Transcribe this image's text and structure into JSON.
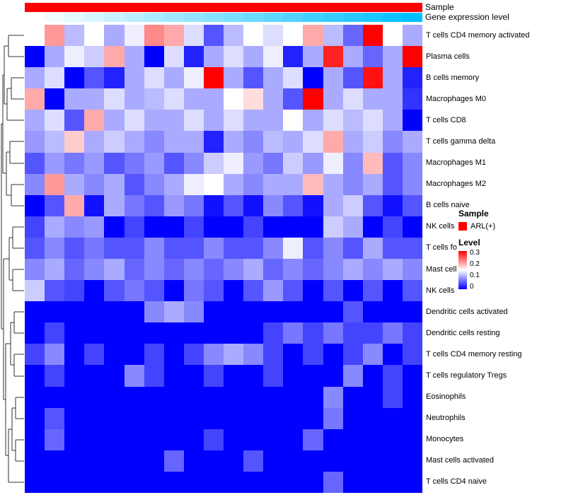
{
  "figure": {
    "annotation_labels": {
      "sample": "Sample",
      "gene_expression": "Gene expression level"
    },
    "legend": {
      "sample_title": "Sample",
      "sample_entry": "ARL(+)",
      "sample_color": "#FF0000",
      "level_title": "Level",
      "level_ticks": [
        "0.3",
        "0.2",
        "0.1",
        "0"
      ]
    }
  },
  "chart_data": {
    "type": "heatmap",
    "title": "",
    "rows": [
      "T cells CD4 memory activated",
      "Plasma cells",
      "B cells memory",
      "Macrophages M0",
      "T cells CD8",
      "T cells gamma delta",
      "Macrophages M1",
      "Macrophages M2",
      "B cells naive",
      "NK cells resting",
      "T cells follicular helper",
      "Mast cells resting",
      "NK cells activated",
      "Dendritic cells activated",
      "Dendritic cells resting",
      "T cells CD4 memory resting",
      "T cells regulatory Tregs",
      "Eosinophils",
      "Neutrophils",
      "Monocytes",
      "Mast cells activated",
      "T cells CD4 naive"
    ],
    "n_columns": 20,
    "value_range": [
      0,
      0.3
    ],
    "colormap": {
      "low": "#0000FF",
      "mid": "#FFFFFF",
      "high": "#FF0000"
    },
    "values": [
      [
        0.15,
        0.21,
        0.11,
        0.15,
        0.1,
        0.14,
        0.22,
        0.2,
        0.13,
        0.05,
        0.11,
        0.15,
        0.13,
        0.15,
        0.2,
        0.11,
        0.06,
        0.3,
        0.15,
        0.1
      ],
      [
        0.0,
        0.1,
        0.14,
        0.12,
        0.2,
        0.1,
        0.0,
        0.13,
        0.02,
        0.1,
        0.13,
        0.1,
        0.14,
        0.02,
        0.1,
        0.28,
        0.1,
        0.06,
        0.1,
        0.3
      ],
      [
        0.1,
        0.13,
        0.0,
        0.05,
        0.02,
        0.1,
        0.13,
        0.1,
        0.14,
        0.3,
        0.1,
        0.05,
        0.1,
        0.13,
        0.0,
        0.1,
        0.05,
        0.29,
        0.1,
        0.02
      ],
      [
        0.2,
        0.0,
        0.1,
        0.1,
        0.13,
        0.1,
        0.11,
        0.13,
        0.1,
        0.1,
        0.15,
        0.17,
        0.1,
        0.05,
        0.3,
        0.1,
        0.13,
        0.1,
        0.1,
        0.03
      ],
      [
        0.1,
        0.13,
        0.05,
        0.2,
        0.1,
        0.13,
        0.1,
        0.1,
        0.13,
        0.1,
        0.13,
        0.1,
        0.1,
        0.15,
        0.1,
        0.13,
        0.11,
        0.13,
        0.1,
        0.0
      ],
      [
        0.09,
        0.11,
        0.18,
        0.1,
        0.12,
        0.1,
        0.08,
        0.1,
        0.1,
        0.02,
        0.1,
        0.08,
        0.11,
        0.1,
        0.13,
        0.2,
        0.1,
        0.12,
        0.08,
        0.1
      ],
      [
        0.05,
        0.09,
        0.07,
        0.09,
        0.05,
        0.07,
        0.09,
        0.05,
        0.08,
        0.12,
        0.14,
        0.09,
        0.07,
        0.12,
        0.09,
        0.14,
        0.08,
        0.19,
        0.05,
        0.08
      ],
      [
        0.08,
        0.21,
        0.1,
        0.08,
        0.1,
        0.05,
        0.08,
        0.1,
        0.14,
        0.15,
        0.1,
        0.08,
        0.1,
        0.1,
        0.19,
        0.1,
        0.08,
        0.1,
        0.05,
        0.08
      ],
      [
        0.0,
        0.05,
        0.2,
        0.01,
        0.1,
        0.07,
        0.05,
        0.09,
        0.07,
        0.01,
        0.05,
        0.01,
        0.08,
        0.05,
        0.01,
        0.1,
        0.12,
        0.05,
        0.01,
        0.05
      ],
      [
        0.04,
        0.1,
        0.08,
        0.09,
        0.0,
        0.04,
        0.0,
        0.0,
        0.04,
        0.0,
        0.0,
        0.04,
        0.0,
        0.0,
        0.0,
        0.12,
        0.1,
        0.0,
        0.04,
        0.0
      ],
      [
        0.05,
        0.08,
        0.05,
        0.07,
        0.05,
        0.05,
        0.08,
        0.05,
        0.05,
        0.08,
        0.05,
        0.05,
        0.08,
        0.14,
        0.05,
        0.08,
        0.05,
        0.1,
        0.05,
        0.05
      ],
      [
        0.08,
        0.1,
        0.06,
        0.08,
        0.1,
        0.06,
        0.08,
        0.06,
        0.08,
        0.06,
        0.08,
        0.1,
        0.06,
        0.08,
        0.06,
        0.08,
        0.1,
        0.08,
        0.1,
        0.08
      ],
      [
        0.12,
        0.05,
        0.04,
        0.0,
        0.05,
        0.07,
        0.05,
        0.0,
        0.07,
        0.05,
        0.0,
        0.05,
        0.09,
        0.05,
        0.0,
        0.05,
        0.0,
        0.05,
        0.0,
        0.05
      ],
      [
        0.0,
        0.0,
        0.0,
        0.0,
        0.0,
        0.0,
        0.08,
        0.1,
        0.08,
        0.0,
        0.0,
        0.0,
        0.0,
        0.0,
        0.0,
        0.0,
        0.05,
        0.0,
        0.0,
        0.0
      ],
      [
        0.0,
        0.04,
        0.0,
        0.0,
        0.0,
        0.0,
        0.0,
        0.0,
        0.0,
        0.0,
        0.0,
        0.0,
        0.04,
        0.07,
        0.04,
        0.07,
        0.04,
        0.04,
        0.07,
        0.04
      ],
      [
        0.04,
        0.08,
        0.0,
        0.04,
        0.0,
        0.0,
        0.04,
        0.0,
        0.04,
        0.08,
        0.1,
        0.08,
        0.04,
        0.0,
        0.04,
        0.0,
        0.04,
        0.08,
        0.0,
        0.04
      ],
      [
        0.0,
        0.04,
        0.0,
        0.0,
        0.0,
        0.08,
        0.04,
        0.0,
        0.0,
        0.04,
        0.0,
        0.0,
        0.04,
        0.0,
        0.0,
        0.0,
        0.08,
        0.0,
        0.04,
        0.0
      ],
      [
        0.0,
        0.0,
        0.0,
        0.0,
        0.0,
        0.0,
        0.0,
        0.0,
        0.0,
        0.0,
        0.0,
        0.0,
        0.0,
        0.0,
        0.0,
        0.08,
        0.0,
        0.0,
        0.04,
        0.0
      ],
      [
        0.0,
        0.05,
        0.0,
        0.0,
        0.0,
        0.0,
        0.0,
        0.0,
        0.0,
        0.0,
        0.0,
        0.0,
        0.0,
        0.0,
        0.0,
        0.07,
        0.0,
        0.0,
        0.0,
        0.0
      ],
      [
        0.0,
        0.06,
        0.0,
        0.0,
        0.0,
        0.0,
        0.0,
        0.0,
        0.0,
        0.04,
        0.0,
        0.0,
        0.0,
        0.0,
        0.06,
        0.0,
        0.0,
        0.0,
        0.0,
        0.0
      ],
      [
        0.0,
        0.0,
        0.0,
        0.0,
        0.0,
        0.0,
        0.0,
        0.06,
        0.0,
        0.0,
        0.0,
        0.05,
        0.0,
        0.0,
        0.0,
        0.0,
        0.0,
        0.0,
        0.0,
        0.0
      ],
      [
        0.0,
        0.0,
        0.0,
        0.0,
        0.0,
        0.0,
        0.0,
        0.0,
        0.0,
        0.0,
        0.0,
        0.0,
        0.0,
        0.0,
        0.0,
        0.06,
        0.0,
        0.0,
        0.0,
        0.0
      ]
    ],
    "column_annotations": {
      "sample": {
        "label": "Sample",
        "value_all_columns": "ARL(+)",
        "color": "#FF0000"
      },
      "gene_expression_level": {
        "label": "Gene expression level",
        "normalized_values": [
          0.0,
          0.05,
          0.11,
          0.16,
          0.21,
          0.26,
          0.32,
          0.37,
          0.42,
          0.47,
          0.53,
          0.58,
          0.63,
          0.68,
          0.74,
          0.79,
          0.84,
          0.89,
          0.95,
          1.0
        ],
        "color_low": "#FFFFFF",
        "color_high": "#00BFFF"
      }
    },
    "legend_position": "right",
    "row_dendrogram": true
  }
}
